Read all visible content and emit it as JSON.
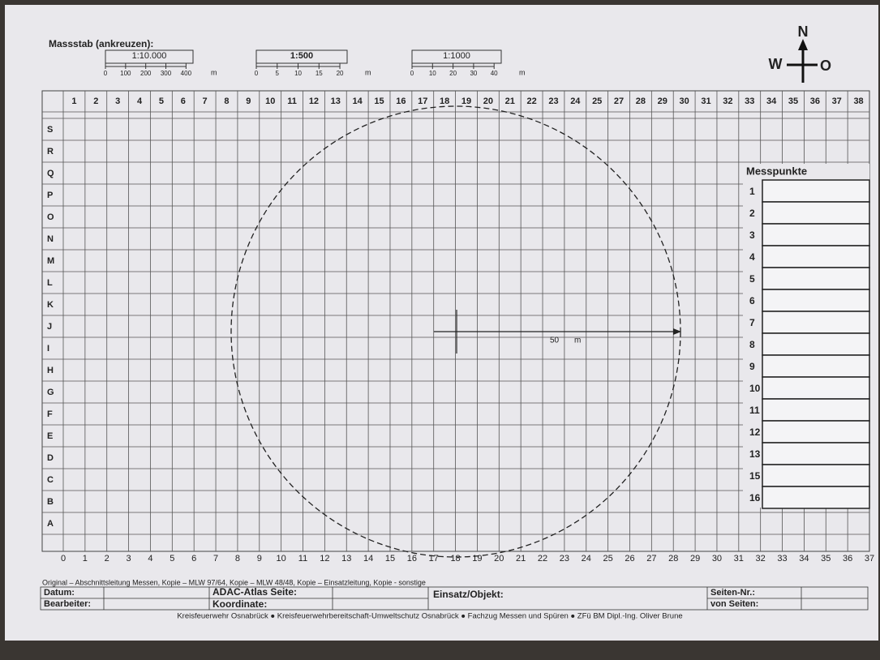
{
  "scale": {
    "title": "Massstab (ankreuzen):",
    "bars": [
      {
        "label": "1:10.000",
        "ticks": [
          "0",
          "100",
          "200",
          "300",
          "400"
        ],
        "unit": "m"
      },
      {
        "label": "1:500",
        "ticks": [
          "0",
          "5",
          "10",
          "15",
          "20"
        ],
        "unit": "m"
      },
      {
        "label": "1:1000",
        "ticks": [
          "0",
          "10",
          "20",
          "30",
          "40"
        ],
        "unit": "m"
      }
    ]
  },
  "compass": {
    "north": "N",
    "west": "W",
    "east": "O"
  },
  "grid": {
    "columns": [
      "1",
      "2",
      "3",
      "4",
      "5",
      "6",
      "7",
      "8",
      "9",
      "10",
      "11",
      "12",
      "13",
      "14",
      "15",
      "16",
      "17",
      "18",
      "19",
      "20",
      "21",
      "22",
      "23",
      "24",
      "25",
      "27",
      "28",
      "29",
      "30",
      "31",
      "32",
      "33",
      "34",
      "35",
      "36",
      "37",
      "38"
    ],
    "rows": [
      "S",
      "R",
      "Q",
      "P",
      "O",
      "N",
      "M",
      "L",
      "K",
      "J",
      "I",
      "H",
      "G",
      "F",
      "E",
      "D",
      "C",
      "B",
      "A"
    ],
    "axis": [
      "0",
      "1",
      "2",
      "3",
      "4",
      "5",
      "6",
      "7",
      "8",
      "9",
      "10",
      "11",
      "12",
      "13",
      "14",
      "15",
      "16",
      "17",
      "18",
      "19",
      "20",
      "21",
      "22",
      "23",
      "24",
      "25",
      "26",
      "27",
      "28",
      "29",
      "30",
      "31",
      "32",
      "33",
      "34",
      "35",
      "36",
      "37"
    ],
    "radius_value": "50",
    "radius_unit": "m"
  },
  "messpunkte": {
    "title": "Messpunkte",
    "numbers": [
      "1",
      "2",
      "3",
      "4",
      "5",
      "6",
      "7",
      "8",
      "9",
      "10",
      "11",
      "12",
      "13",
      "15",
      "16"
    ]
  },
  "footer": {
    "distribution": "Original – Abschnittsleitung Messen, Kopie – MLW 97/64, Kopie – MLW 48/48, Kopie – Einsatzleitung, Kopie - sonstige",
    "datum": "Datum:",
    "bearbeiter": "Bearbeiter:",
    "adac": "ADAC-Atlas Seite:",
    "koordinate": "Koordinate:",
    "einsatz": "Einsatz/Objekt:",
    "seiten_nr": "Seiten-Nr.:",
    "von_seiten": "von Seiten:",
    "credits": "Kreisfeuerwehr Osnabrück ● Kreisfeuerwehrbereitschaft-Umweltschutz Osnabrück ● Fachzug Messen und Spüren ● ZFü BM Dipl.-Ing. Oliver Brune"
  }
}
